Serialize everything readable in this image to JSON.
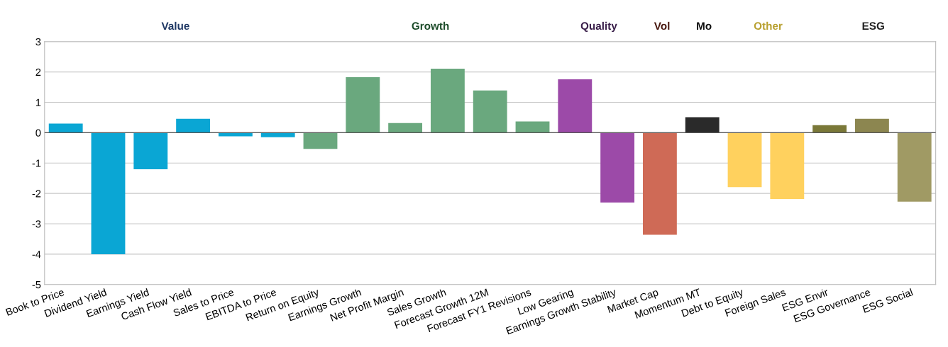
{
  "chart_data": {
    "type": "bar",
    "categories": [
      "Book to Price",
      "Dividend Yield",
      "Earnings Yield",
      "Cash Flow Yield",
      "Sales to Price",
      "EBITDA to Price",
      "Return on Equity",
      "Earnings Growth",
      "Net Profit Margin",
      "Sales Growth",
      "Forecast Growth 12M",
      "Forecast FY1 Revisions",
      "Low Gearing",
      "Earnings Growth Stability",
      "Market Cap",
      "Momentum MT",
      "Debt to Equity",
      "Foreign Sales",
      "ESG Envir",
      "ESG Governance",
      "ESG Social"
    ],
    "values": [
      0.3,
      -4.0,
      -1.2,
      0.46,
      -0.12,
      -0.15,
      -0.53,
      1.83,
      0.32,
      2.11,
      1.39,
      0.37,
      1.76,
      -2.3,
      -3.36,
      0.51,
      -1.79,
      -2.18,
      0.25,
      0.46,
      -2.27
    ],
    "colors": [
      "#0aa6d4",
      "#0aa6d4",
      "#0aa6d4",
      "#0aa6d4",
      "#0aa6d4",
      "#0aa6d4",
      "#6aa87e",
      "#6aa87e",
      "#6aa87e",
      "#6aa87e",
      "#6aa87e",
      "#6aa87e",
      "#9c4aa8",
      "#9c4aa8",
      "#cf6a56",
      "#2a2a2a",
      "#ffd15e",
      "#ffd15e",
      "#7a7838",
      "#8c8650",
      "#a09a64"
    ],
    "annotations": [
      "Value",
      "Growth",
      "Quality",
      "Vol",
      "Mo",
      "Other",
      "ESG"
    ],
    "ylim": [
      -5,
      3
    ],
    "yticks": [
      -5,
      -4,
      -3,
      -2,
      -1,
      0,
      1,
      2,
      3
    ],
    "grid": "y"
  }
}
